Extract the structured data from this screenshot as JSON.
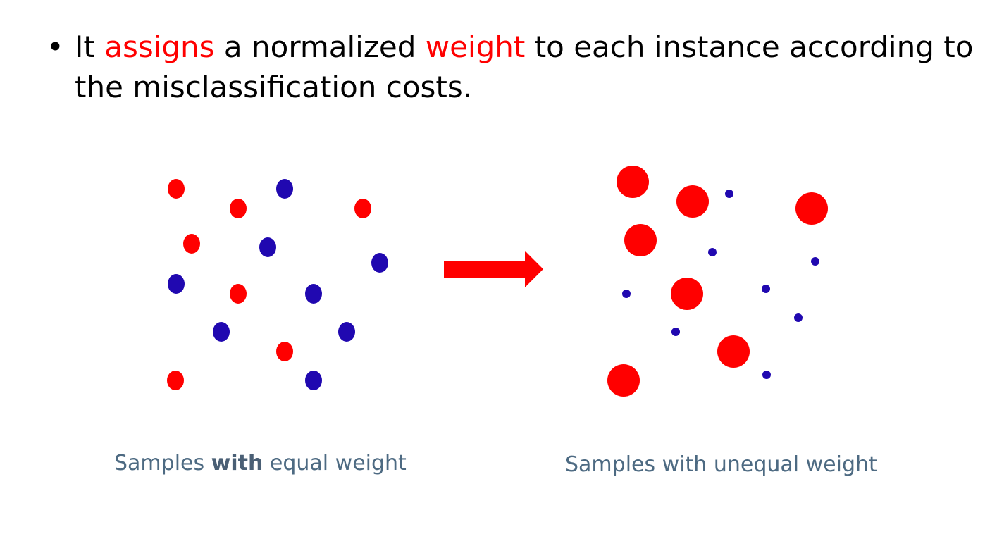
{
  "bullet": {
    "marker": "•",
    "part1": "It ",
    "highlight1": "assigns",
    "part2": " a normalized ",
    "highlight2": "weight",
    "part3": " to each instance according to the misclassification costs."
  },
  "captions": {
    "left_pre": "Samples ",
    "left_bold": "with",
    "left_post": " equal weight",
    "right": "Samples with unequal weight"
  },
  "colors": {
    "red": "#ff0000",
    "blue": "#2008b0",
    "highlight": "#ff0000",
    "caption": "#4d6a82"
  },
  "icons": {
    "arrow": "right-arrow-icon"
  }
}
